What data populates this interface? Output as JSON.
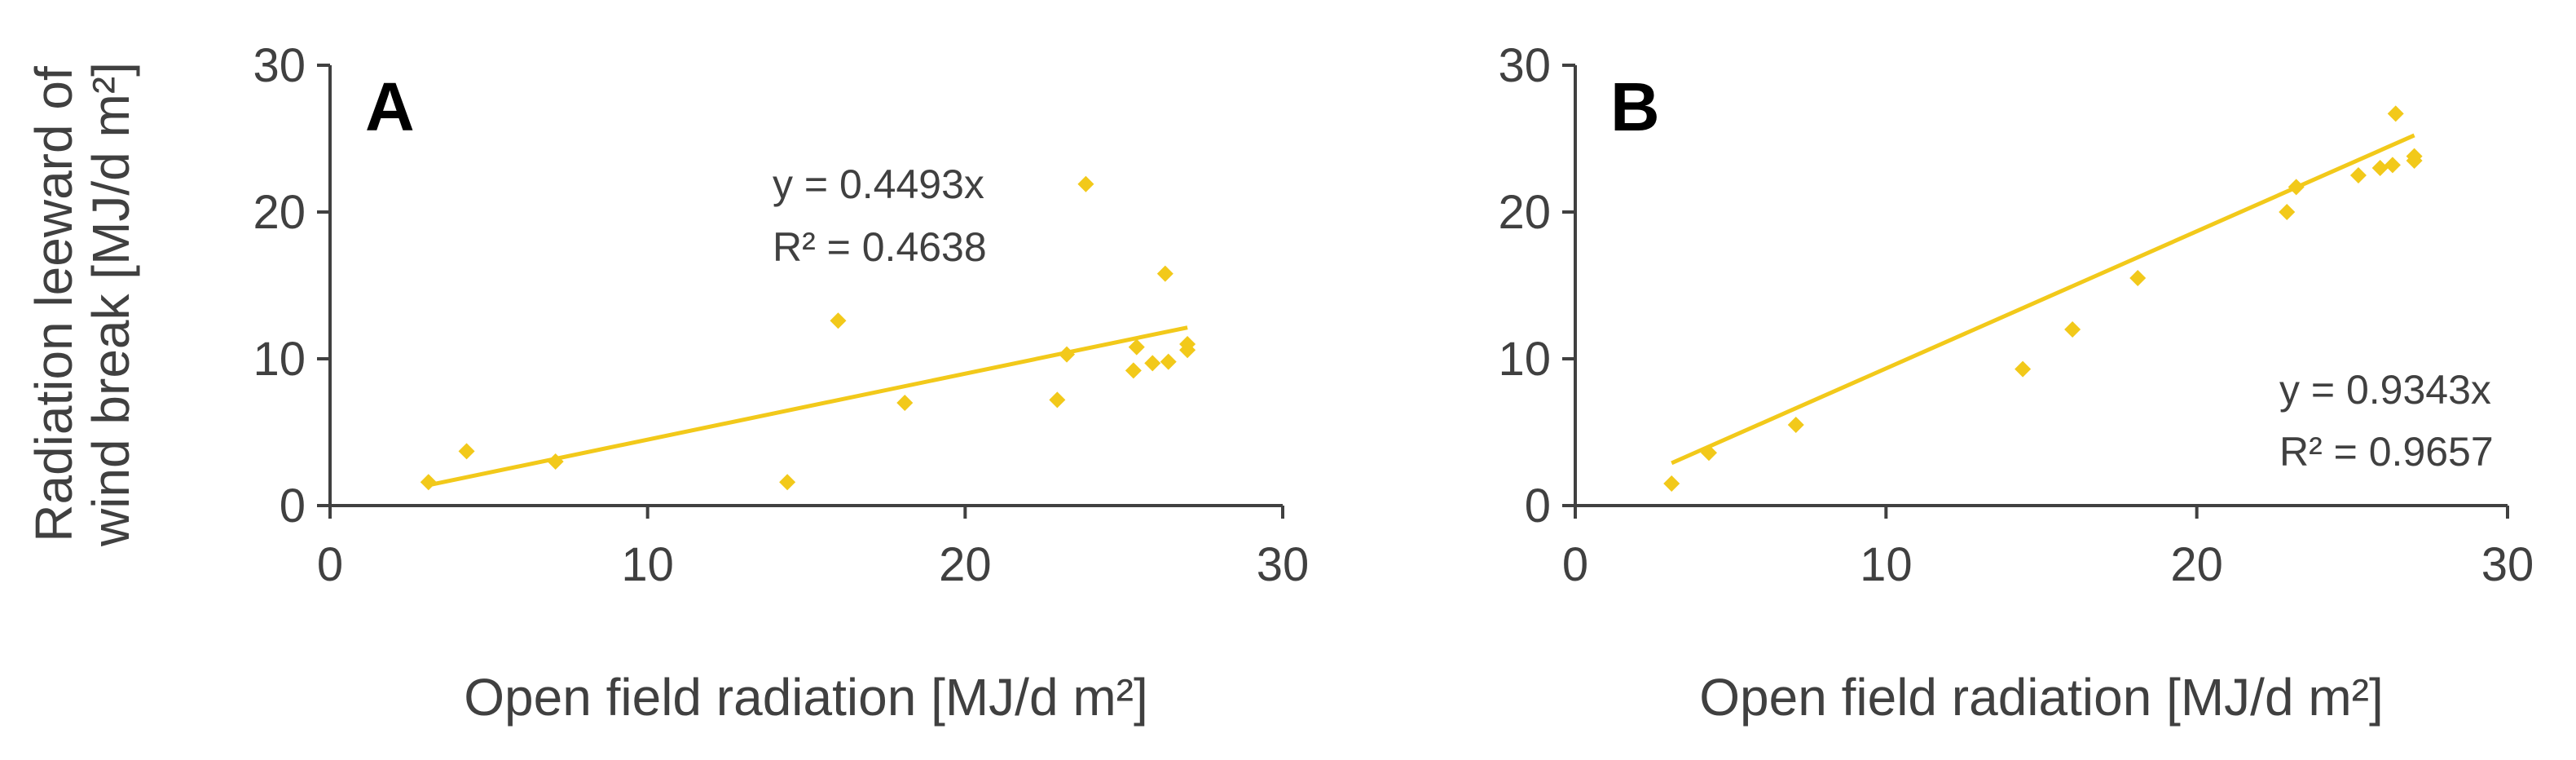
{
  "colors": {
    "series": "#F2C91A",
    "axis": "#404040",
    "text": "#404040",
    "panel_letter": "#000000"
  },
  "shared_ylabel": [
    "Radiation leeward of",
    "wind break [MJ/d m²]"
  ],
  "chart_data": [
    {
      "type": "scatter",
      "panel": "A",
      "title": "",
      "xlabel": "Open field radiation [MJ/d m²]",
      "ylabel": "Radiation leeward of wind break [MJ/d m²]",
      "xlim": [
        0,
        30
      ],
      "ylim": [
        0,
        30
      ],
      "xticks": [
        "0",
        "10",
        "20",
        "30"
      ],
      "yticks": [
        "0",
        "10",
        "20",
        "30"
      ],
      "grid": false,
      "trendline": {
        "slope": 0.4493,
        "x_range": [
          3.1,
          27.0
        ]
      },
      "equation": "y = 0.4493x",
      "r_squared": "R² = 0.4638",
      "points": [
        [
          3.1,
          1.6
        ],
        [
          4.3,
          3.7
        ],
        [
          7.1,
          3.0
        ],
        [
          14.4,
          1.6
        ],
        [
          16.0,
          12.6
        ],
        [
          18.1,
          7.0
        ],
        [
          22.9,
          7.2
        ],
        [
          23.2,
          10.3
        ],
        [
          23.8,
          21.9
        ],
        [
          25.3,
          9.2
        ],
        [
          25.4,
          10.8
        ],
        [
          25.9,
          9.7
        ],
        [
          26.3,
          15.8
        ],
        [
          26.4,
          9.8
        ],
        [
          27.0,
          10.6
        ],
        [
          27.0,
          11.0
        ]
      ]
    },
    {
      "type": "scatter",
      "panel": "B",
      "title": "",
      "xlabel": "Open field radiation [MJ/d m²]",
      "ylabel": "",
      "xlim": [
        0,
        30
      ],
      "ylim": [
        0,
        30
      ],
      "xticks": [
        "0",
        "10",
        "20",
        "30"
      ],
      "yticks": [
        "0",
        "10",
        "20",
        "30"
      ],
      "grid": false,
      "trendline": {
        "slope": 0.9343,
        "x_range": [
          3.1,
          27.0
        ]
      },
      "equation": "y = 0.9343x",
      "r_squared": "R² = 0.9657",
      "points": [
        [
          3.1,
          1.5
        ],
        [
          4.3,
          3.6
        ],
        [
          7.1,
          5.5
        ],
        [
          14.4,
          9.3
        ],
        [
          16.0,
          12.0
        ],
        [
          18.1,
          15.5
        ],
        [
          22.9,
          20.0
        ],
        [
          23.2,
          21.7
        ],
        [
          25.2,
          22.5
        ],
        [
          25.9,
          23.0
        ],
        [
          26.3,
          23.2
        ],
        [
          26.4,
          26.7
        ],
        [
          27.0,
          23.5
        ],
        [
          27.0,
          23.8
        ]
      ]
    }
  ]
}
